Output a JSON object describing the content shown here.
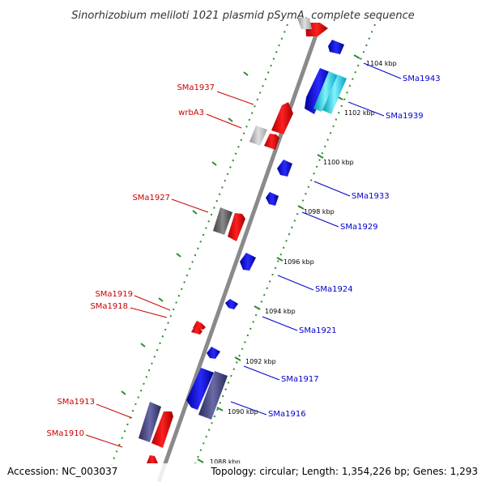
{
  "title": "Sinorhizobium meliloti 1021 plasmid pSymA, complete sequence",
  "footer": {
    "accession": "Accession: NC_003037",
    "topology": "Topology: circular; Length: 1,354,226 bp; Genes: 1,293"
  },
  "colors": {
    "backbone": "#8a8a8a",
    "tick_dash": "#2e8b2e",
    "forward_gene": "#ff0000",
    "reverse_gene": "#0000ff",
    "forward_label": "#cc0000",
    "reverse_label": "#0000cc",
    "pseudo_gene": "#b0b0b0",
    "operon_dark": "#4a4a80",
    "cyan_gene": "#00e0ff"
  },
  "kbp_ticks": [
    "1104 kbp",
    "1102 kbp",
    "1100 kbp",
    "1098 kbp",
    "1096 kbp",
    "1094 kbp",
    "1092 kbp",
    "1090 kbp",
    "1088 kbp"
  ],
  "left_labels": [
    "SMa1937",
    "wrbA3",
    "SMa1927",
    "SMa1919",
    "SMa1918",
    "SMa1913",
    "SMa1910"
  ],
  "right_labels": [
    "SMa1943",
    "SMa1939",
    "SMa1933",
    "SMa1929",
    "SMa1924",
    "SMa1921",
    "SMa1917",
    "SMa1916"
  ]
}
